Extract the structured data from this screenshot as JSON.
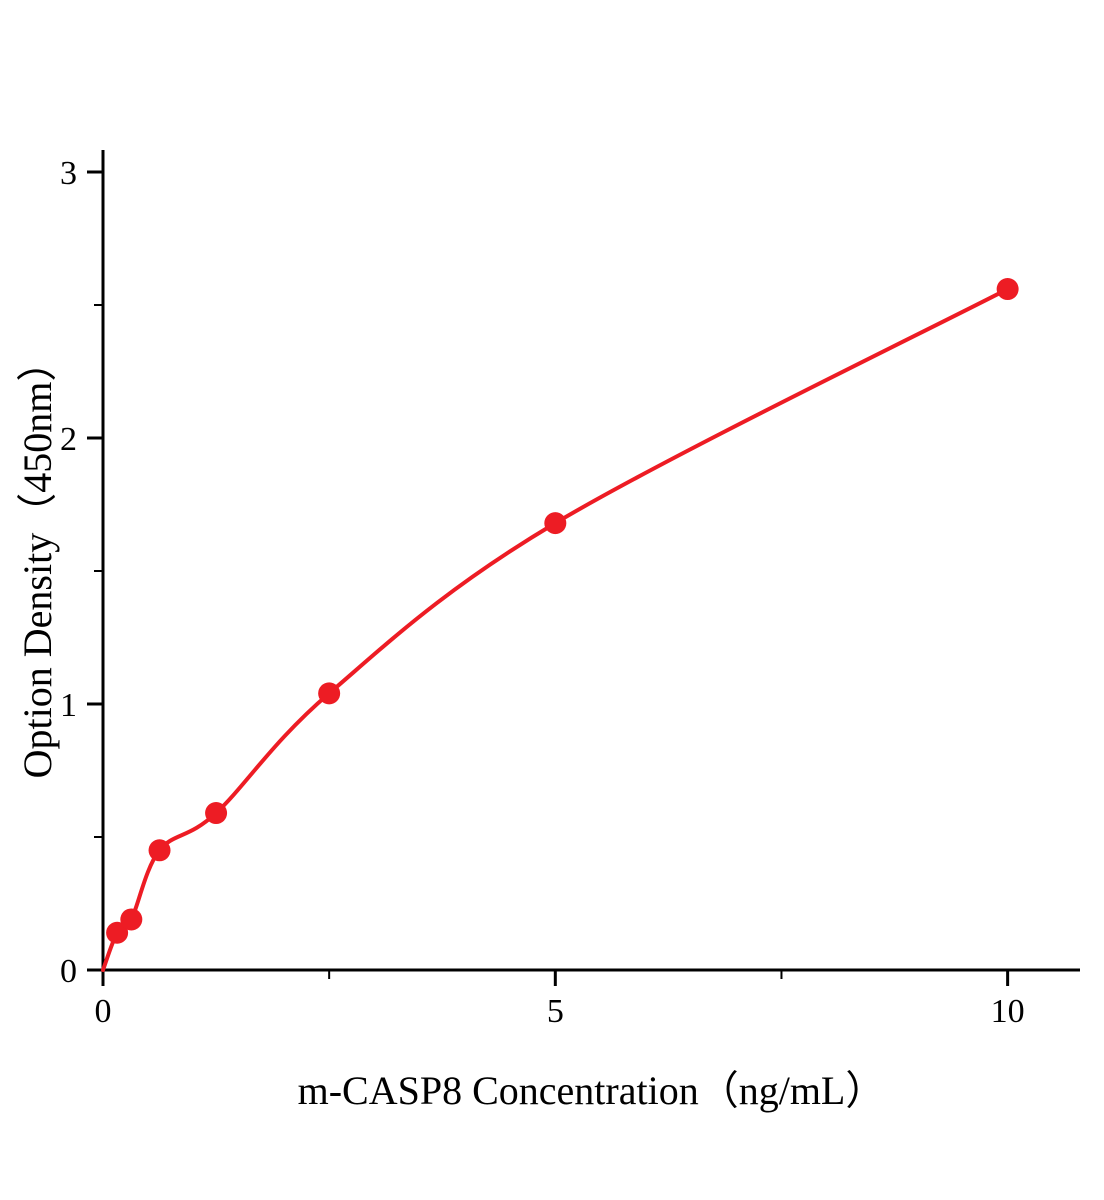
{
  "chart_data": {
    "type": "scatter",
    "title": "",
    "xlabel": "m-CASP8 Concentration（ng/mL）",
    "ylabel": "Option Density（450nm）",
    "x": [
      0.156,
      0.313,
      0.625,
      1.25,
      2.5,
      5,
      10
    ],
    "y": [
      0.14,
      0.19,
      0.45,
      0.59,
      1.04,
      1.68,
      2.56
    ],
    "curve_start": {
      "x": 0,
      "y": 0
    },
    "xlim": [
      0,
      10.8
    ],
    "ylim": [
      0,
      3
    ],
    "x_major_ticks": [
      0,
      5,
      10
    ],
    "x_minor_ticks": [
      2.5,
      7.5
    ],
    "y_major_ticks": [
      0,
      1,
      2,
      3
    ],
    "y_minor_ticks": [
      0.5,
      1.5,
      2.5
    ],
    "grid": false,
    "legend": null,
    "colors": {
      "marker": "#ed1c24",
      "line": "#ed1c24",
      "axis": "#000000"
    }
  }
}
